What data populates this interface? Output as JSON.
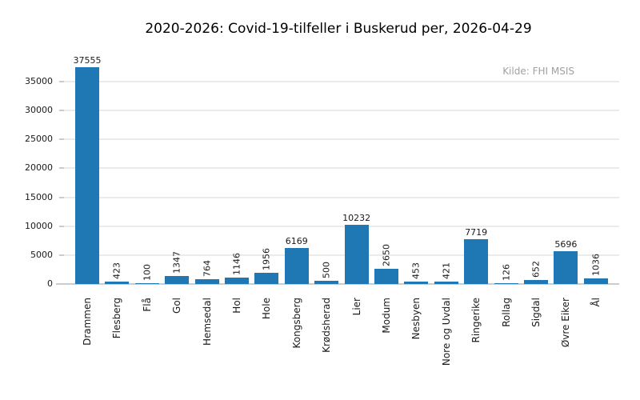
{
  "chart_data": {
    "type": "bar",
    "title": "2020-2026: Covid-19-tilfeller i Buskerud per, 2026-04-29",
    "source_annotation": "Kilde: FHI MSIS",
    "categories": [
      "Drammen",
      "Flesberg",
      "Flå",
      "Gol",
      "Hemsedal",
      "Hol",
      "Hole",
      "Kongsberg",
      "Krødsherad",
      "Lier",
      "Modum",
      "Nesbyen",
      "Nore og Uvdal",
      "Ringerike",
      "Rollag",
      "Sigdal",
      "Øvre Eiker",
      "Ål"
    ],
    "values": [
      37555,
      423,
      100,
      1347,
      764,
      1146,
      1956,
      6169,
      500,
      10232,
      2650,
      453,
      421,
      7719,
      126,
      652,
      5696,
      1036
    ],
    "xlabel": "",
    "ylabel": "",
    "ylim": [
      0,
      40500
    ],
    "yticks": [
      0,
      5000,
      10000,
      15000,
      20000,
      25000,
      30000,
      35000
    ],
    "grid": true,
    "legend_position": "none",
    "value_labels": true,
    "colors": {
      "bar": "#1f77b4",
      "grid": "#ebebeb",
      "axis": "#cccccc",
      "tick_text": "#1a1a1a",
      "source_text": "#a0a0a0"
    }
  }
}
